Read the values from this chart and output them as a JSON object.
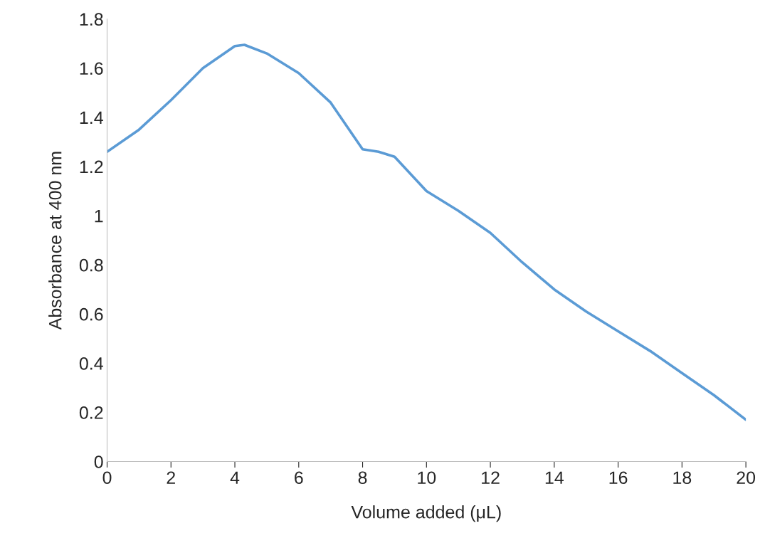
{
  "chart_data": {
    "type": "line",
    "xlabel": "Volume added (μL)",
    "ylabel": "Absorbance at 400 nm",
    "x": [
      0,
      1,
      2,
      3,
      4,
      4.3,
      5,
      6,
      7,
      8,
      8.5,
      9,
      10,
      11,
      12,
      13,
      14,
      15,
      16,
      17,
      18,
      19,
      20
    ],
    "series": [
      {
        "color": "#5b9bd5",
        "values": [
          1.26,
          1.35,
          1.47,
          1.6,
          1.69,
          1.695,
          1.66,
          1.58,
          1.46,
          1.27,
          1.26,
          1.24,
          1.1,
          1.02,
          0.93,
          0.81,
          0.7,
          0.61,
          0.53,
          0.45,
          0.36,
          0.27,
          0.17
        ]
      }
    ],
    "xlim": [
      0,
      20
    ],
    "xticks": [
      0,
      2,
      4,
      6,
      8,
      10,
      12,
      14,
      16,
      18,
      20
    ],
    "ylim": [
      0,
      1.8
    ],
    "yticks": [
      0,
      {
        "value": 0.2,
        "label": "0.2"
      },
      {
        "value": 0.4,
        "label": "0.4"
      },
      {
        "value": 0.6,
        "label": "0.6"
      },
      {
        "value": 0.8,
        "label": "0.8"
      },
      1,
      {
        "value": 1.2,
        "label": "1.2"
      },
      {
        "value": 1.4,
        "label": "1.4"
      },
      {
        "value": 1.6,
        "label": "1.6"
      },
      {
        "value": 1.8,
        "label": "1.8"
      }
    ],
    "grid": false,
    "marker": "none",
    "line_style": "solid"
  }
}
